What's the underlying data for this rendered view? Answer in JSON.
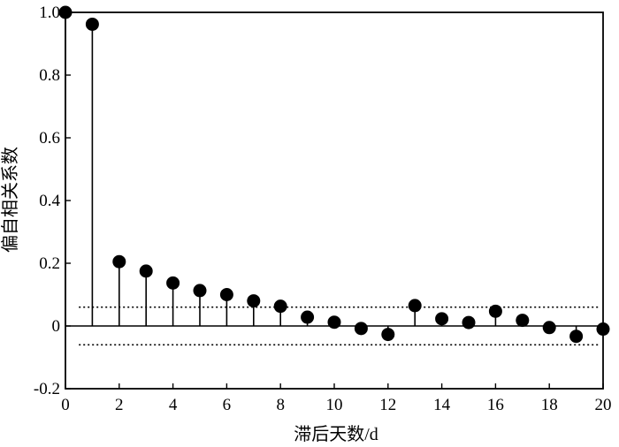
{
  "chart_data": {
    "type": "stem",
    "xlabel": "滞后天数/d",
    "ylabel": "偏自相关系数",
    "xlim": [
      0,
      20
    ],
    "ylim": [
      -0.2,
      1.0
    ],
    "xticks": [
      "0",
      "2",
      "4",
      "6",
      "8",
      "10",
      "12",
      "14",
      "16",
      "18",
      "20"
    ],
    "yticks": [
      "-0.2",
      "0",
      "0.2",
      "0.4",
      "0.6",
      "0.8",
      "1.0"
    ],
    "confidence_bounds": [
      0.06,
      -0.06
    ],
    "x": [
      0,
      1,
      2,
      3,
      4,
      5,
      6,
      7,
      8,
      9,
      10,
      11,
      12,
      13,
      14,
      15,
      16,
      17,
      18,
      19,
      20
    ],
    "values": [
      1.0,
      0.962,
      0.205,
      0.175,
      0.137,
      0.113,
      0.1,
      0.08,
      0.063,
      0.028,
      0.012,
      -0.008,
      -0.027,
      0.065,
      0.023,
      0.011,
      0.047,
      0.018,
      -0.005,
      -0.033,
      -0.01
    ],
    "grid": false,
    "marker_color": "#000000"
  }
}
